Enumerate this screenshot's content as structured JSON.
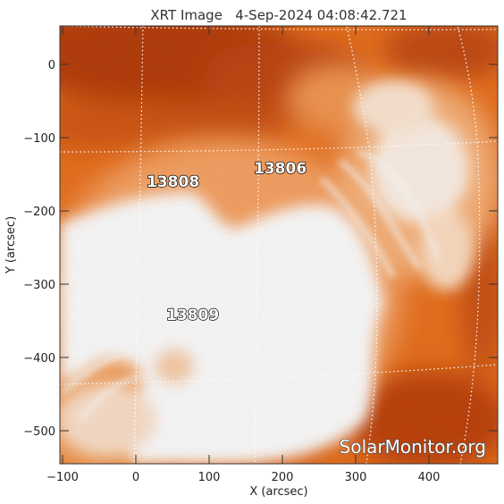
{
  "title": "XRT Image   4-Sep-2024 04:08:42.721",
  "xlabel": "X (arcsec)",
  "ylabel": "Y (arcsec)",
  "x_ticks": [
    "−100",
    "0",
    "100",
    "200",
    "300",
    "400"
  ],
  "y_ticks": [
    "0",
    "−100",
    "−200",
    "−300",
    "−400",
    "−500"
  ],
  "regions": [
    {
      "number": "13806"
    },
    {
      "number": "13808"
    },
    {
      "number": "13809"
    }
  ],
  "watermark": "SolarMonitor.org",
  "colors": {
    "dark": "#b8400a",
    "mid": "#ec7320",
    "light": "#f9a566",
    "bright": "#ffffff",
    "grid": "#ffffff"
  }
}
